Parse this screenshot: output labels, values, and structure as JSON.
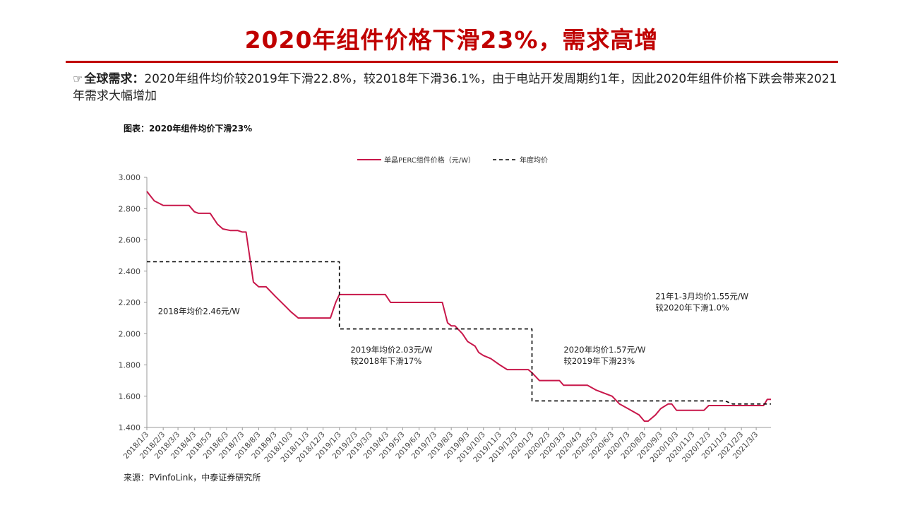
{
  "slide": {
    "title": "2020年组件价格下滑23%，需求高增",
    "bullet_lead": "全球需求：",
    "bullet_text": "2020年组件均价较2019年下滑22.8%，较2018年下滑36.1%，由于电站开发周期约1年，因此2020年组件价格下跌会带来2021年需求大幅增加",
    "chart_caption": "图表：2020年组件均价下滑23%",
    "source": "来源：PVinfoLink，中泰证券研究所"
  },
  "colors": {
    "accent": "#c00000",
    "series_line": "#c8174a",
    "avg_line": "#000000"
  },
  "chart_data": {
    "type": "line",
    "ylim": [
      1.4,
      3.0
    ],
    "yticks": [
      "1.400",
      "1.600",
      "1.800",
      "2.000",
      "2.200",
      "2.400",
      "2.600",
      "2.800",
      "3.000"
    ],
    "x_labels": [
      "2018/1/3",
      "2018/2/3",
      "2018/3/3",
      "2018/4/3",
      "2018/5/3",
      "2018/6/3",
      "2018/7/3",
      "2018/8/3",
      "2018/9/3",
      "2018/10/3",
      "2018/11/3",
      "2018/12/3",
      "2019/1/3",
      "2019/2/3",
      "2019/3/3",
      "2019/4/3",
      "2019/5/3",
      "2019/6/3",
      "2019/7/3",
      "2019/8/3",
      "2019/9/3",
      "2019/10/3",
      "2019/11/3",
      "2019/12/3",
      "2020/1/3",
      "2020/2/3",
      "2020/3/3",
      "2020/4/3",
      "2020/5/3",
      "2020/6/3",
      "2020/7/3",
      "2020/8/3",
      "2020/9/3",
      "2020/10/3",
      "2020/11/3",
      "2020/12/3",
      "2021/1/3",
      "2021/2/3",
      "2021/3/3"
    ],
    "legend": [
      "单晶PERC组件价格（元/W）",
      "年度均价"
    ],
    "series": [
      {
        "name": "单晶PERC组件价格（元/W）",
        "points": [
          [
            "2018/1/3",
            2.91
          ],
          [
            "2018/1/17",
            2.85
          ],
          [
            "2018/2/3",
            2.82
          ],
          [
            "2018/3/3",
            2.82
          ],
          [
            "2018/3/24",
            2.82
          ],
          [
            "2018/4/3",
            2.78
          ],
          [
            "2018/4/11",
            2.77
          ],
          [
            "2018/5/3",
            2.77
          ],
          [
            "2018/5/17",
            2.7
          ],
          [
            "2018/5/27",
            2.67
          ],
          [
            "2018/6/10",
            2.66
          ],
          [
            "2018/6/24",
            2.66
          ],
          [
            "2018/7/3",
            2.65
          ],
          [
            "2018/7/10",
            2.65
          ],
          [
            "2018/7/24",
            2.33
          ],
          [
            "2018/8/3",
            2.3
          ],
          [
            "2018/8/17",
            2.3
          ],
          [
            "2018/9/3",
            2.24
          ],
          [
            "2018/9/24",
            2.17
          ],
          [
            "2018/10/3",
            2.14
          ],
          [
            "2018/10/17",
            2.1
          ],
          [
            "2018/11/3",
            2.1
          ],
          [
            "2018/12/3",
            2.1
          ],
          [
            "2018/12/17",
            2.1
          ],
          [
            "2018/12/27",
            2.2
          ],
          [
            "2019/1/3",
            2.25
          ],
          [
            "2019/2/3",
            2.25
          ],
          [
            "2019/3/3",
            2.25
          ],
          [
            "2019/3/31",
            2.25
          ],
          [
            "2019/4/10",
            2.2
          ],
          [
            "2019/5/3",
            2.2
          ],
          [
            "2019/6/3",
            2.2
          ],
          [
            "2019/7/17",
            2.2
          ],
          [
            "2019/7/27",
            2.07
          ],
          [
            "2019/8/3",
            2.05
          ],
          [
            "2019/8/10",
            2.05
          ],
          [
            "2019/8/24",
            2.0
          ],
          [
            "2019/9/3",
            1.95
          ],
          [
            "2019/9/17",
            1.92
          ],
          [
            "2019/9/24",
            1.88
          ],
          [
            "2019/10/3",
            1.86
          ],
          [
            "2019/10/17",
            1.84
          ],
          [
            "2019/11/3",
            1.8
          ],
          [
            "2019/11/17",
            1.77
          ],
          [
            "2019/12/3",
            1.77
          ],
          [
            "2019/12/27",
            1.77
          ],
          [
            "2020/1/3",
            1.75
          ],
          [
            "2020/1/17",
            1.7
          ],
          [
            "2020/2/3",
            1.7
          ],
          [
            "2020/2/24",
            1.7
          ],
          [
            "2020/3/3",
            1.67
          ],
          [
            "2020/4/3",
            1.67
          ],
          [
            "2020/4/17",
            1.67
          ],
          [
            "2020/5/3",
            1.64
          ],
          [
            "2020/6/3",
            1.6
          ],
          [
            "2020/6/17",
            1.55
          ],
          [
            "2020/7/3",
            1.52
          ],
          [
            "2020/7/24",
            1.48
          ],
          [
            "2020/8/3",
            1.44
          ],
          [
            "2020/8/10",
            1.44
          ],
          [
            "2020/8/24",
            1.48
          ],
          [
            "2020/9/3",
            1.52
          ],
          [
            "2020/9/17",
            1.55
          ],
          [
            "2020/9/24",
            1.55
          ],
          [
            "2020/10/3",
            1.51
          ],
          [
            "2020/11/3",
            1.51
          ],
          [
            "2020/11/24",
            1.51
          ],
          [
            "2020/12/3",
            1.54
          ],
          [
            "2021/1/3",
            1.54
          ],
          [
            "2021/2/3",
            1.54
          ],
          [
            "2021/3/3",
            1.54
          ],
          [
            "2021/3/17",
            1.54
          ],
          [
            "2021/3/24",
            1.58
          ],
          [
            "2021/3/31",
            1.58
          ]
        ]
      },
      {
        "name": "年度均价",
        "points": [
          [
            "2018/1/3",
            2.46
          ],
          [
            "2019/1/3",
            2.46
          ],
          [
            "2019/1/3",
            2.03
          ],
          [
            "2020/1/3",
            2.03
          ],
          [
            "2020/1/3",
            1.57
          ],
          [
            "2021/1/3",
            1.57
          ],
          [
            "2021/1/17",
            1.55
          ],
          [
            "2021/3/31",
            1.55
          ]
        ]
      }
    ],
    "annotations": [
      {
        "lines": [
          "2018年均价2.46元/W"
        ],
        "x": "2018/1/24",
        "y": 2.126
      },
      {
        "lines": [
          "2019年均价2.03元/W",
          "较2018年下滑17%"
        ],
        "x": "2019/1/24",
        "y": 1.88
      },
      {
        "lines": [
          "2020年均价1.57元/W",
          "较2019年下滑23%"
        ],
        "x": "2020/3/3",
        "y": 1.88
      },
      {
        "lines": [
          "21年1-3月均价1.55元/W",
          "较2020年下滑1.0%"
        ],
        "x": "2020/8/24",
        "y": 2.22
      }
    ]
  }
}
